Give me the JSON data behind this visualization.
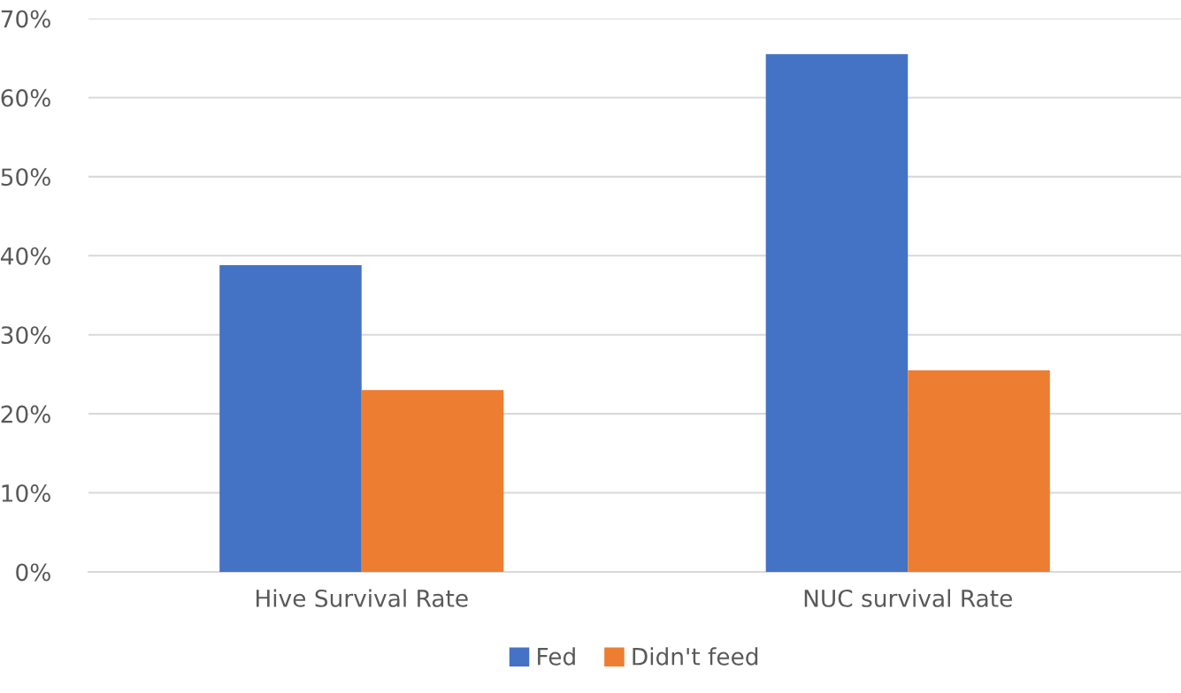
{
  "chart_data": {
    "type": "bar",
    "categories": [
      "Hive Survival Rate",
      "NUC survival Rate"
    ],
    "series": [
      {
        "name": "Fed",
        "color": "#4472c4",
        "values": [
          38.8,
          65.5
        ]
      },
      {
        "name": "Didn't feed",
        "color": "#ed7d31",
        "values": [
          23.0,
          25.5
        ]
      }
    ],
    "ylim": [
      0,
      70
    ],
    "yticks": [
      {
        "value": 0,
        "label": "0%"
      },
      {
        "value": 10,
        "label": "10%"
      },
      {
        "value": 20,
        "label": "20%"
      },
      {
        "value": 30,
        "label": "30%"
      },
      {
        "value": 40,
        "label": "40%"
      },
      {
        "value": 50,
        "label": "50%"
      },
      {
        "value": 60,
        "label": "60%"
      },
      {
        "value": 70,
        "label": "70%"
      }
    ],
    "grid": "y",
    "legend": "bottom"
  }
}
